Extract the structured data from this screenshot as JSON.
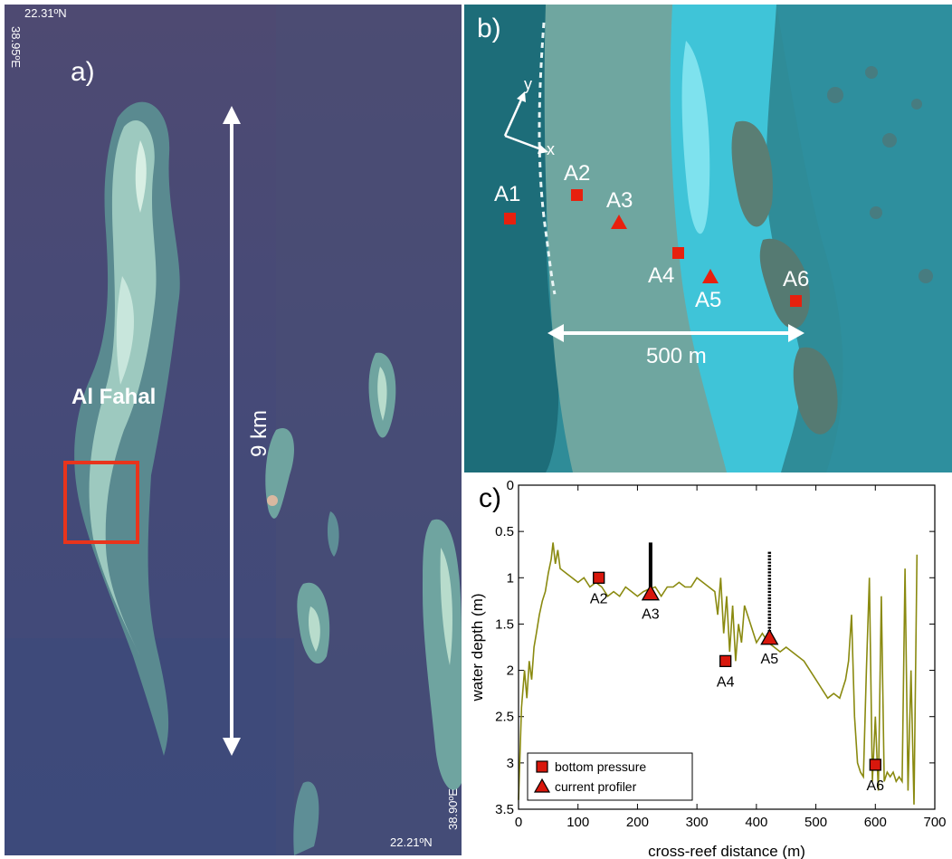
{
  "panel_a": {
    "label": "a)",
    "coord_top_lat": "22.31ºN",
    "coord_top_lon": "38.95ºE",
    "coord_bottom_lat": "22.21ºN",
    "coord_bottom_lon": "38.90ºE",
    "reef_name": "Al Fahal",
    "scale_label": "9 km",
    "highlight_box_color": "#e8341c"
  },
  "panel_b": {
    "label": "b)",
    "axis_x": "x",
    "axis_y": "y",
    "scale_label": "500 m",
    "marker_color": "#e8200e",
    "stations": [
      {
        "id": "A1",
        "type": "bottom pressure"
      },
      {
        "id": "A2",
        "type": "bottom pressure"
      },
      {
        "id": "A3",
        "type": "current profiler"
      },
      {
        "id": "A4",
        "type": "bottom pressure"
      },
      {
        "id": "A5",
        "type": "current profiler"
      },
      {
        "id": "A6",
        "type": "bottom pressure"
      }
    ]
  },
  "panel_c": {
    "label": "c)",
    "legend": {
      "bottom_pressure": "bottom pressure",
      "current_profiler": "current profiler"
    }
  },
  "chart_data": {
    "type": "line",
    "title": "",
    "xlabel": "cross-reef distance (m)",
    "ylabel": "water depth (m)",
    "xlim": [
      0,
      700
    ],
    "ylim": [
      3.5,
      0
    ],
    "y_inverted": true,
    "xticks": [
      0,
      100,
      200,
      300,
      400,
      500,
      600,
      700
    ],
    "yticks": [
      0,
      0.5,
      1,
      1.5,
      2,
      2.5,
      3,
      3.5
    ],
    "ytick_labels": [
      "0",
      "0.5",
      "1",
      "1.5",
      "2",
      "2.5",
      "3",
      "3.5"
    ],
    "line_color": "#8a8a10",
    "series": [
      {
        "x": [
          0,
          5,
          10,
          14,
          18,
          22,
          26,
          30,
          35,
          40,
          45,
          50,
          55,
          58,
          62,
          66,
          70,
          80,
          90,
          100,
          110,
          120,
          130,
          140,
          150,
          160,
          170,
          180,
          190,
          200,
          210,
          220,
          230,
          240,
          250,
          260,
          270,
          280,
          290,
          300,
          310,
          320,
          330,
          335,
          340,
          345,
          350,
          355,
          360,
          365,
          370,
          375,
          380,
          390,
          400,
          410,
          420,
          430,
          440,
          450,
          460,
          470,
          480,
          490,
          500,
          510,
          520,
          530,
          540,
          550,
          555,
          560,
          565,
          570,
          575,
          580,
          585,
          590,
          595,
          600,
          605,
          610,
          615,
          620,
          625,
          630,
          635,
          640,
          645,
          650,
          655,
          660,
          665,
          670
        ],
        "y": [
          3.4,
          2.4,
          2.0,
          2.3,
          1.9,
          2.1,
          1.75,
          1.6,
          1.4,
          1.25,
          1.15,
          0.95,
          0.8,
          0.62,
          0.85,
          0.7,
          0.9,
          0.95,
          1.0,
          1.05,
          1.0,
          1.1,
          1.05,
          1.1,
          1.2,
          1.15,
          1.2,
          1.1,
          1.15,
          1.2,
          1.15,
          1.12,
          1.1,
          1.2,
          1.1,
          1.1,
          1.05,
          1.1,
          1.1,
          1.0,
          1.05,
          1.1,
          1.15,
          1.4,
          1.0,
          1.6,
          1.2,
          1.8,
          1.3,
          1.9,
          1.5,
          1.7,
          1.3,
          1.5,
          1.7,
          1.6,
          1.7,
          1.75,
          1.8,
          1.75,
          1.8,
          1.85,
          1.9,
          2.0,
          2.1,
          2.2,
          2.3,
          2.25,
          2.3,
          2.1,
          1.9,
          1.4,
          2.5,
          3.0,
          3.1,
          3.15,
          2.0,
          1.0,
          3.2,
          2.5,
          3.3,
          1.2,
          3.2,
          3.1,
          3.15,
          3.1,
          3.2,
          3.15,
          3.2,
          0.9,
          3.3,
          2.0,
          3.45,
          0.75
        ]
      }
    ],
    "stations": [
      {
        "label": "A2",
        "x": 135,
        "y": 1.0,
        "type": "bottom pressure"
      },
      {
        "label": "A3",
        "x": 222,
        "y": 1.17,
        "type": "current profiler"
      },
      {
        "label": "A4",
        "x": 348,
        "y": 1.9,
        "type": "bottom pressure"
      },
      {
        "label": "A5",
        "x": 422,
        "y": 1.65,
        "type": "current profiler"
      },
      {
        "label": "A6",
        "x": 600,
        "y": 3.02,
        "type": "bottom pressure"
      }
    ],
    "profiles": [
      {
        "x": 222,
        "y_top": 0.62,
        "y_bottom": 1.12,
        "style": "solid"
      },
      {
        "x": 422,
        "y_top": 0.72,
        "y_bottom": 1.6,
        "style": "dotted"
      }
    ],
    "legend_position": "bottom-left"
  }
}
